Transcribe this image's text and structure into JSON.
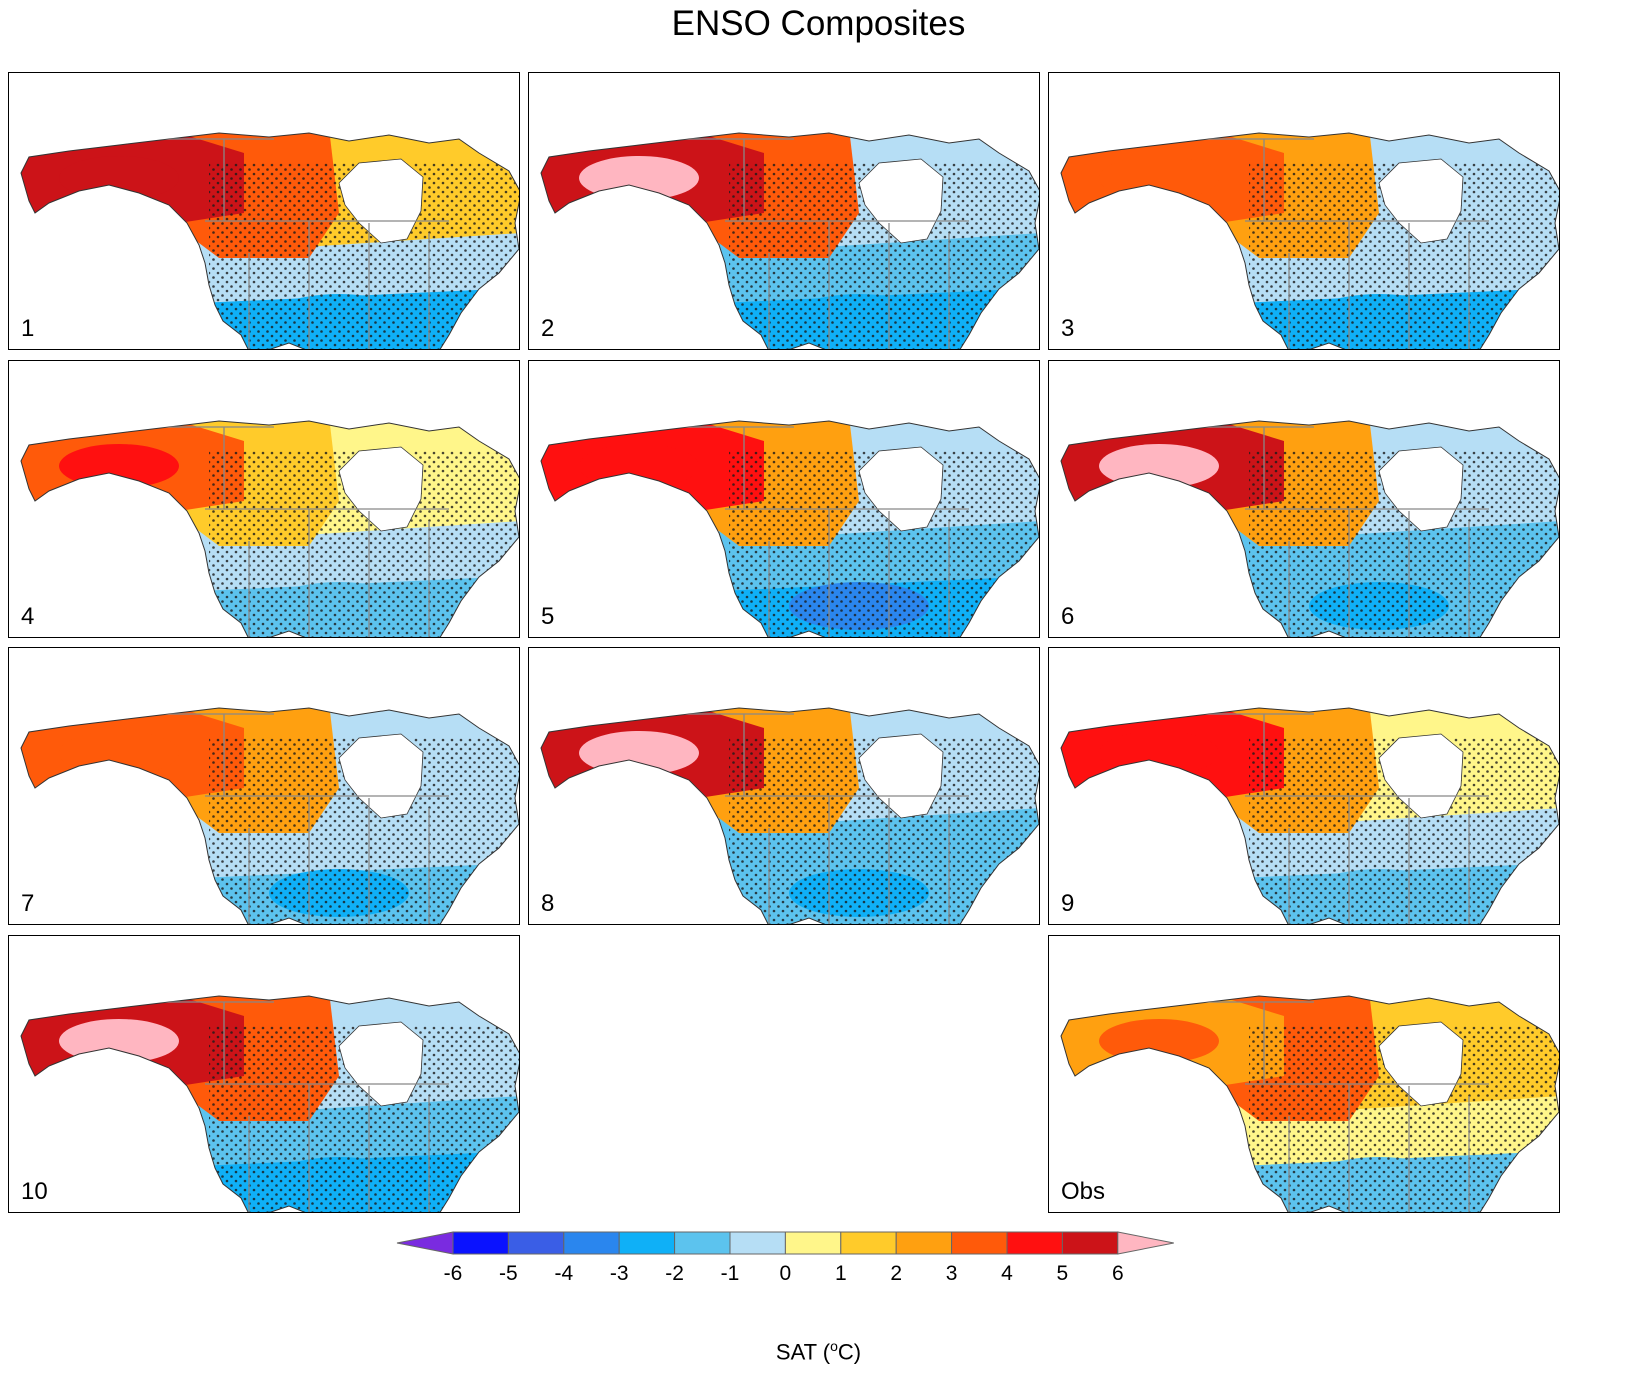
{
  "figure": {
    "title": "ENSO Composites",
    "colorbar_label": "SAT (",
    "colorbar_unit": "C)",
    "colorbar_degree": "o"
  },
  "colors": {
    "below_-6": "#7a2be0",
    "-6_-5": "#0a12ff",
    "-5_-4": "#3a5ee6",
    "-4_-3": "#2a86ee",
    "-3_-2": "#0fb0f7",
    "-2_-1": "#5cc3ee",
    "-1_0": "#b6def5",
    "0_1": "#fff68a",
    "1_2": "#ffcb2a",
    "2_3": "#ffa010",
    "3_4": "#ff5a0a",
    "4_5": "#ff1010",
    "5_6": "#cc1318",
    "above_6": "#ffb6c1",
    "land_outline": "#888888",
    "stipple": "#1a1a1a"
  },
  "chart_data": {
    "type": "heatmap",
    "variable": "SAT",
    "units": "°C",
    "colorbar": {
      "levels": [
        -6,
        -5,
        -4,
        -3,
        -2,
        -1,
        0,
        1,
        2,
        3,
        4,
        5,
        6
      ],
      "tick_labels": [
        "-6",
        "-5",
        "-4",
        "-3",
        "-2",
        "-1",
        "0",
        "1",
        "2",
        "3",
        "4",
        "5",
        "6"
      ],
      "extend": "both"
    },
    "panels": [
      {
        "label": "1",
        "alaska": 5,
        "canada_west": 3,
        "canada_east": 1,
        "us_north": -0.5,
        "us_south": -2.5,
        "max": 5,
        "min": -2.5
      },
      {
        "label": "2",
        "alaska": 5,
        "canada_west": 3,
        "canada_east": -0.5,
        "us_north": -1.5,
        "us_south": -2.5,
        "max": 6,
        "min": -2.5
      },
      {
        "label": "3",
        "alaska": 3,
        "canada_west": 2,
        "canada_east": -0.5,
        "us_north": -1,
        "us_south": -2.5,
        "max": 3.5,
        "min": -2.5
      },
      {
        "label": "4",
        "alaska": 3,
        "canada_west": 1,
        "canada_east": 0.5,
        "us_north": -0.5,
        "us_south": -1.5,
        "max": 4,
        "min": -1.5
      },
      {
        "label": "5",
        "alaska": 4,
        "canada_west": 2.5,
        "canada_east": -0.5,
        "us_north": -1.5,
        "us_south": -2.5,
        "max": 4.5,
        "min": -3.5
      },
      {
        "label": "6",
        "alaska": 5,
        "canada_west": 2,
        "canada_east": -0.5,
        "us_north": -1.5,
        "us_south": -1.5,
        "max": 6,
        "min": -2.5
      },
      {
        "label": "7",
        "alaska": 3,
        "canada_west": 2,
        "canada_east": -0.5,
        "us_north": -1,
        "us_south": -2,
        "max": 3.5,
        "min": -2.5
      },
      {
        "label": "8",
        "alaska": 5,
        "canada_west": 2,
        "canada_east": -0.5,
        "us_north": -1.5,
        "us_south": -1.5,
        "max": 6,
        "min": -2.5
      },
      {
        "label": "9",
        "alaska": 4,
        "canada_west": 2,
        "canada_east": 0.5,
        "us_north": -0.5,
        "us_south": -1.5,
        "max": 4.5,
        "min": -2
      },
      {
        "label": "10",
        "alaska": 5,
        "canada_west": 3,
        "canada_east": -1,
        "us_north": -1.5,
        "us_south": -2.5,
        "max": 6,
        "min": -2.5
      },
      {
        "label": "Obs",
        "alaska": 2.5,
        "canada_west": 3,
        "canada_east": 1.5,
        "us_north": 0.5,
        "us_south": -1.5,
        "max": 3.5,
        "min": -2
      }
    ]
  }
}
